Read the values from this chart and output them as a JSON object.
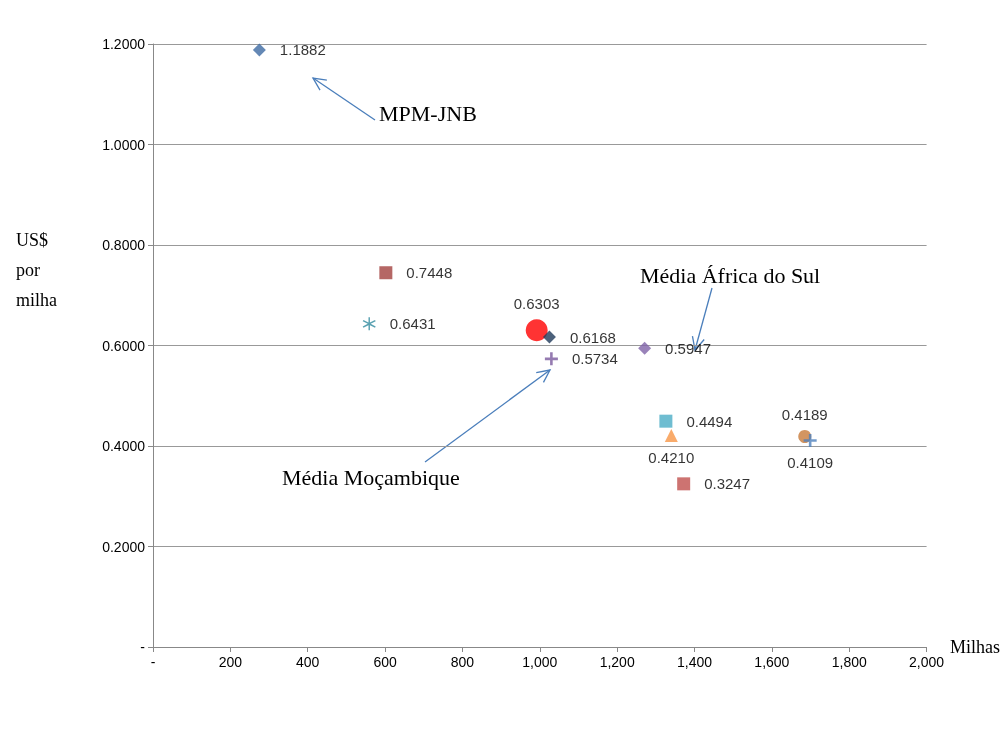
{
  "chart_data": {
    "type": "scatter",
    "xlabel": "Milhas",
    "ylabel": "US$ por milha",
    "xlim": [
      0,
      2000
    ],
    "xticks": [
      {
        "value": 0,
        "label": "-"
      },
      200,
      400,
      600,
      800,
      {
        "value": 1000,
        "label": "1,000"
      },
      {
        "value": 1200,
        "label": "1,200"
      },
      {
        "value": 1400,
        "label": "1,400"
      },
      {
        "value": 1600,
        "label": "1,600"
      },
      {
        "value": 1800,
        "label": "1,800"
      },
      {
        "value": 2000,
        "label": "2,000"
      }
    ],
    "ylim": [
      0,
      1.2
    ],
    "yticks": [
      {
        "value": 0,
        "label": "-"
      },
      {
        "value": 0.2,
        "label": "0.2000"
      },
      {
        "value": 0.4,
        "label": "0.4000"
      },
      {
        "value": 0.6,
        "label": "0.6000"
      },
      {
        "value": 0.8,
        "label": "0.8000"
      },
      {
        "value": 1.0,
        "label": "1.0000"
      },
      {
        "value": 1.2,
        "label": "1.2000"
      }
    ],
    "grid": "y",
    "annotations": [
      "MPM-JNB",
      "Média Moçambique",
      "Média África do Sul"
    ],
    "series": [
      {
        "color": "#3d6aa3",
        "marker": "diamond",
        "x": [
          275
        ],
        "values": [
          1.1882
        ],
        "value_labels": [
          "1.1882"
        ]
      },
      {
        "color": "#a3413f",
        "marker": "square",
        "x": [
          602
        ],
        "values": [
          0.7448
        ],
        "value_labels": [
          "0.7448"
        ]
      },
      {
        "color": "#2f8a9e",
        "marker": "star",
        "x": [
          559
        ],
        "values": [
          0.6431
        ],
        "value_labels": [
          "0.6431"
        ]
      },
      {
        "color": "#ff0000",
        "marker": "circle",
        "x": [
          992
        ],
        "values": [
          0.6303
        ],
        "value_labels": [
          "0.6303"
        ]
      },
      {
        "color": "#1f3a5a",
        "marker": "diamond",
        "x": [
          1025
        ],
        "values": [
          0.6168
        ],
        "value_labels": [
          "0.6168"
        ]
      },
      {
        "color": "#7a5a9e",
        "marker": "cross",
        "x": [
          1030
        ],
        "values": [
          0.5734
        ],
        "value_labels": [
          "0.5734"
        ]
      },
      {
        "color": "#7f63a8",
        "marker": "diamond",
        "x": [
          1271
        ],
        "values": [
          0.5947
        ],
        "value_labels": [
          "0.5947"
        ]
      },
      {
        "color": "#4bacc6",
        "marker": "square",
        "x": [
          1326
        ],
        "values": [
          0.4494
        ],
        "value_labels": [
          "0.4494"
        ]
      },
      {
        "color": "#f79646",
        "marker": "triangle",
        "x": [
          1340
        ],
        "values": [
          0.421
        ],
        "value_labels": [
          "0.4210"
        ]
      },
      {
        "color": "#c0504d",
        "marker": "square",
        "x": [
          1372
        ],
        "values": [
          0.3247
        ],
        "value_labels": [
          "0.3247"
        ]
      },
      {
        "color": "#c87a3a",
        "marker": "circle",
        "x": [
          1685
        ],
        "values": [
          0.4189
        ],
        "value_labels": [
          "0.4189"
        ]
      },
      {
        "color": "#4f81bd",
        "marker": "cross",
        "x": [
          1699
        ],
        "values": [
          0.4109
        ],
        "value_labels": [
          "0.4109"
        ]
      }
    ]
  }
}
